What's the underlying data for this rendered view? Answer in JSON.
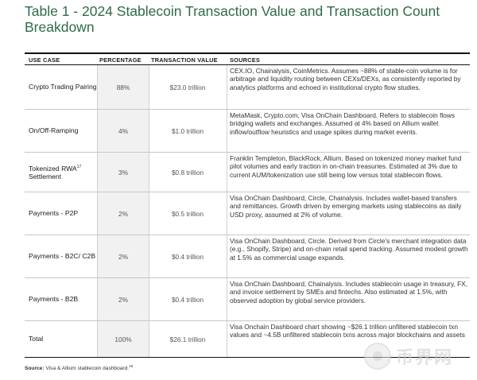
{
  "title": "Table 1 - 2024 Stablecoin Transaction Value and Transaction Count Breakdown",
  "headers": {
    "use_case": "USE CASE",
    "percentage": "PERCENTAGE",
    "transaction_value": "TRANSACTION VALUE",
    "sources": "SOURCES"
  },
  "rows": [
    {
      "use_case": "Crypto Trading Pairing",
      "percentage": "88%",
      "value": "$23.0 trillion",
      "sources": "CEX.IO, Chainalysis, CoinMetrics. Assumes ~88% of stable-coin volume is for arbitrage and liquidity routing between CEXs/DEXs, as consistently reported by analytics platforms and echoed in institutional crypto flow studies."
    },
    {
      "use_case": "On/Off-Ramping",
      "percentage": "4%",
      "value": "$1.0 trillion",
      "sources": "MetaMask, Crypto.com, Visa OnChain Dashboard. Refers to stablecoin flows bridging wallets and exchanges. Assumed at 4% based on Allium wallet inflow/outflow heuristics and usage spikes during market events."
    },
    {
      "use_case": "Tokenized RWA",
      "use_case_sup": "17",
      "use_case_line2": "Settlement",
      "percentage": "3%",
      "value": "$0.8 trillion",
      "sources": "Franklin Templeton, BlackRock, Allium. Based on tokenized money market fund pilot volumes and early traction in on-chain treasuries. Estimated at 3% due to current AUM/tokenization use still being low versus total stablecoin flows."
    },
    {
      "use_case": "Payments - P2P",
      "percentage": "2%",
      "value": "$0.5 trillion",
      "sources": "Visa OnChain Dashboard, Circle, Chainalysis. Includes wallet-based transfers and remittances. Growth driven by emerging markets using stablecoins as daily USD proxy, assumed at 2% of volume."
    },
    {
      "use_case": "Payments - B2C/ C2B",
      "percentage": "2%",
      "value": "$0.4 trillion",
      "sources": "Visa OnChain Dashboard, Circle. Derived from Circle's merchant integration data (e.g., Shopify, Stripe) and on-chain retail spend tracking. Assumed modest growth at 1.5% as commercial usage expands."
    },
    {
      "use_case": "Payments - B2B",
      "percentage": "2%",
      "value": "$0.4 trillion",
      "sources": "Visa OnChain Dashboard, Chainalysis. Includes stablecoin usage in treasury, FX, and invoice settlement by SMEs and fintechs. Also estimated at 1.5%, with observed adoption by global service providers."
    },
    {
      "use_case": "Total",
      "percentage": "100%",
      "value": "$26.1 trillion",
      "sources": "Visa Onchain Dashboard chart showing ~$26.1 trillion unfiltered stablecoin txn values and ~4.5B unfiltered stablecoin txns across major blockchains and assets"
    }
  ],
  "source_label": "Source:",
  "source_text": "Visa & Allium stablecoin dashboard.",
  "source_sup": "18",
  "watermark": "币界网",
  "colors": {
    "title": "#2f6b4a",
    "pct_bg": "#f1f1f1"
  }
}
